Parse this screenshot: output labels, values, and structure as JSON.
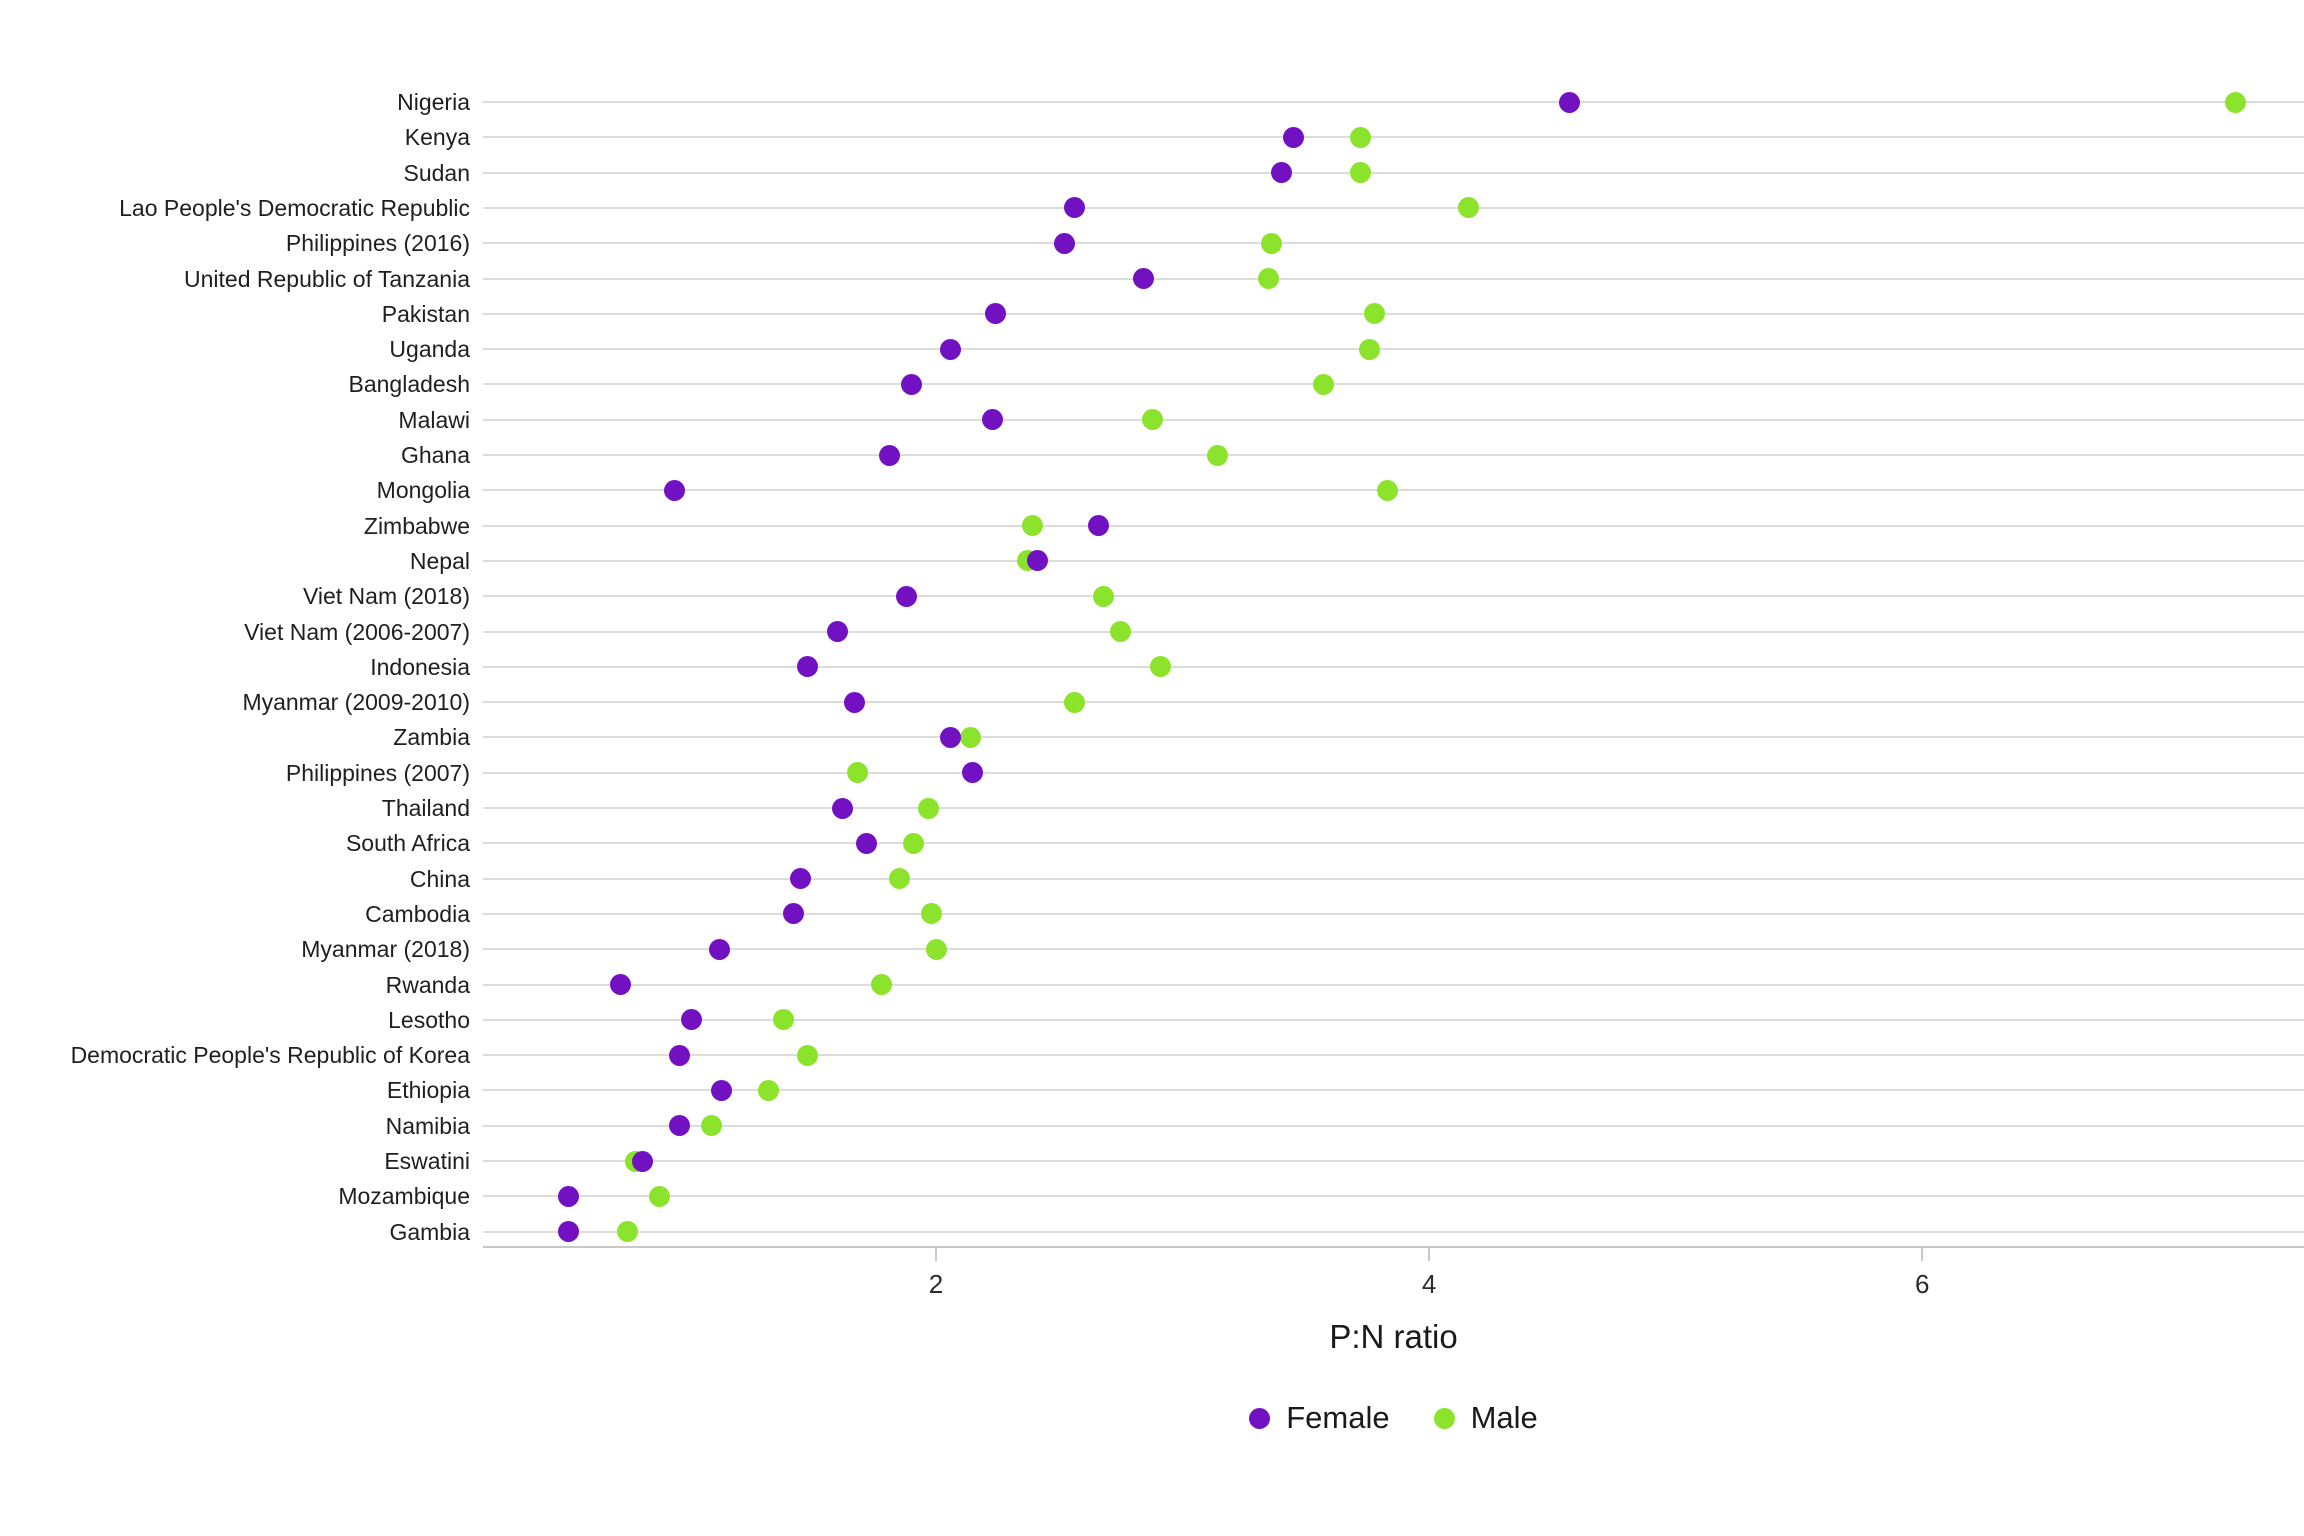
{
  "chart_data": {
    "type": "scatter",
    "subtype": "cleveland-dot-plot",
    "title": "",
    "xlabel": "P:N ratio",
    "x_ticks": [
      2,
      4,
      6
    ],
    "x_range": [
      0.2,
      7.55
    ],
    "grid": "horizontal category gridlines only",
    "legend_position": "bottom-center",
    "background": "#ffffff",
    "gridline_color": "#dcdcdc",
    "axis_color": "#c8c8c8",
    "categories": [
      "Nigeria",
      "Kenya",
      "Sudan",
      "Lao People's Democratic Republic",
      "Philippines (2016)",
      "United Republic of Tanzania",
      "Pakistan",
      "Uganda",
      "Bangladesh",
      "Malawi",
      "Ghana",
      "Mongolia",
      "Zimbabwe",
      "Nepal",
      "Viet Nam (2018)",
      "Viet Nam (2006-2007)",
      "Indonesia",
      "Myanmar (2009-2010)",
      "Zambia",
      "Philippines (2007)",
      "Thailand",
      "South Africa",
      "China",
      "Cambodia",
      "Myanmar (2018)",
      "Rwanda",
      "Lesotho",
      "Democratic People's Republic of Korea",
      "Ethiopia",
      "Namibia",
      "Eswatini",
      "Mozambique",
      "Gambia"
    ],
    "series": [
      {
        "name": "Female",
        "color": "#7211C2",
        "values": [
          4.57,
          3.45,
          3.4,
          2.56,
          2.52,
          2.84,
          2.24,
          2.06,
          1.9,
          2.23,
          1.81,
          0.94,
          2.66,
          2.41,
          1.88,
          1.6,
          1.48,
          1.67,
          2.06,
          2.15,
          1.62,
          1.72,
          1.45,
          1.42,
          1.12,
          0.72,
          1.01,
          0.96,
          1.13,
          0.96,
          0.81,
          0.51,
          0.51
        ]
      },
      {
        "name": "Male",
        "color": "#8CE32B",
        "values": [
          7.27,
          3.72,
          3.72,
          4.16,
          3.36,
          3.35,
          3.78,
          3.76,
          3.57,
          2.88,
          3.14,
          3.83,
          2.39,
          2.37,
          2.68,
          2.75,
          2.91,
          2.56,
          2.14,
          1.68,
          1.97,
          1.91,
          1.85,
          1.98,
          2.0,
          1.78,
          1.38,
          1.48,
          1.32,
          1.09,
          0.78,
          0.88,
          0.75
        ]
      }
    ]
  }
}
